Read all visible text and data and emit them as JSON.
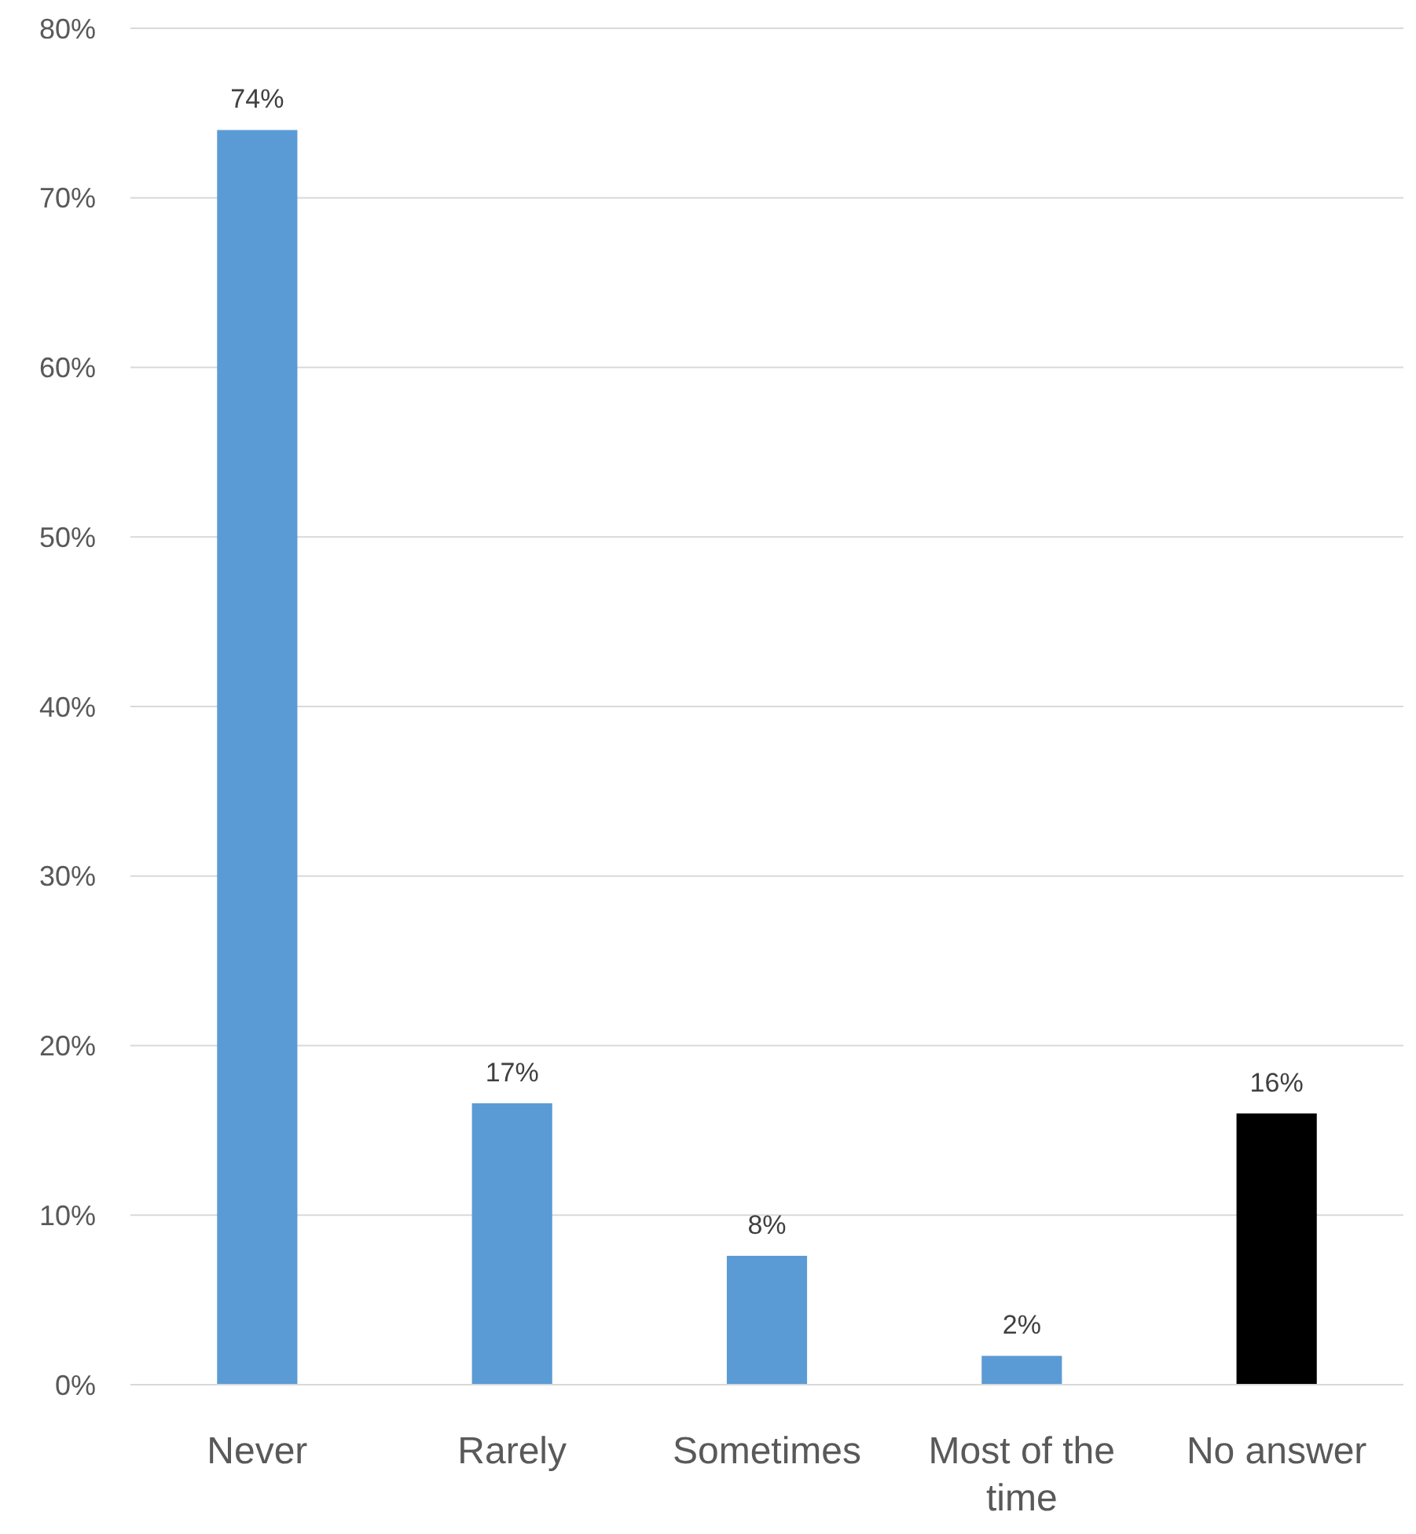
{
  "chart_data": {
    "type": "bar",
    "categories": [
      "Never",
      "Rarely",
      "Sometimes",
      "Most of the time",
      "No answer"
    ],
    "values": [
      74,
      16.6,
      7.6,
      1.7,
      16
    ],
    "value_labels": [
      "74%",
      "17%",
      "8%",
      "2%",
      "16%"
    ],
    "colors": [
      "#5b9bd5",
      "#5b9bd5",
      "#5b9bd5",
      "#5b9bd5",
      "#000000"
    ],
    "ylim": [
      0,
      80
    ],
    "yticks": [
      {
        "value": 0,
        "label": "0%"
      },
      {
        "value": 10,
        "label": "10%"
      },
      {
        "value": 20,
        "label": "20%"
      },
      {
        "value": 30,
        "label": "30%"
      },
      {
        "value": 40,
        "label": "40%"
      },
      {
        "value": 50,
        "label": "50%"
      },
      {
        "value": 60,
        "label": "60%"
      },
      {
        "value": 70,
        "label": "70%"
      },
      {
        "value": 80,
        "label": "80%"
      }
    ],
    "grid": "y"
  }
}
